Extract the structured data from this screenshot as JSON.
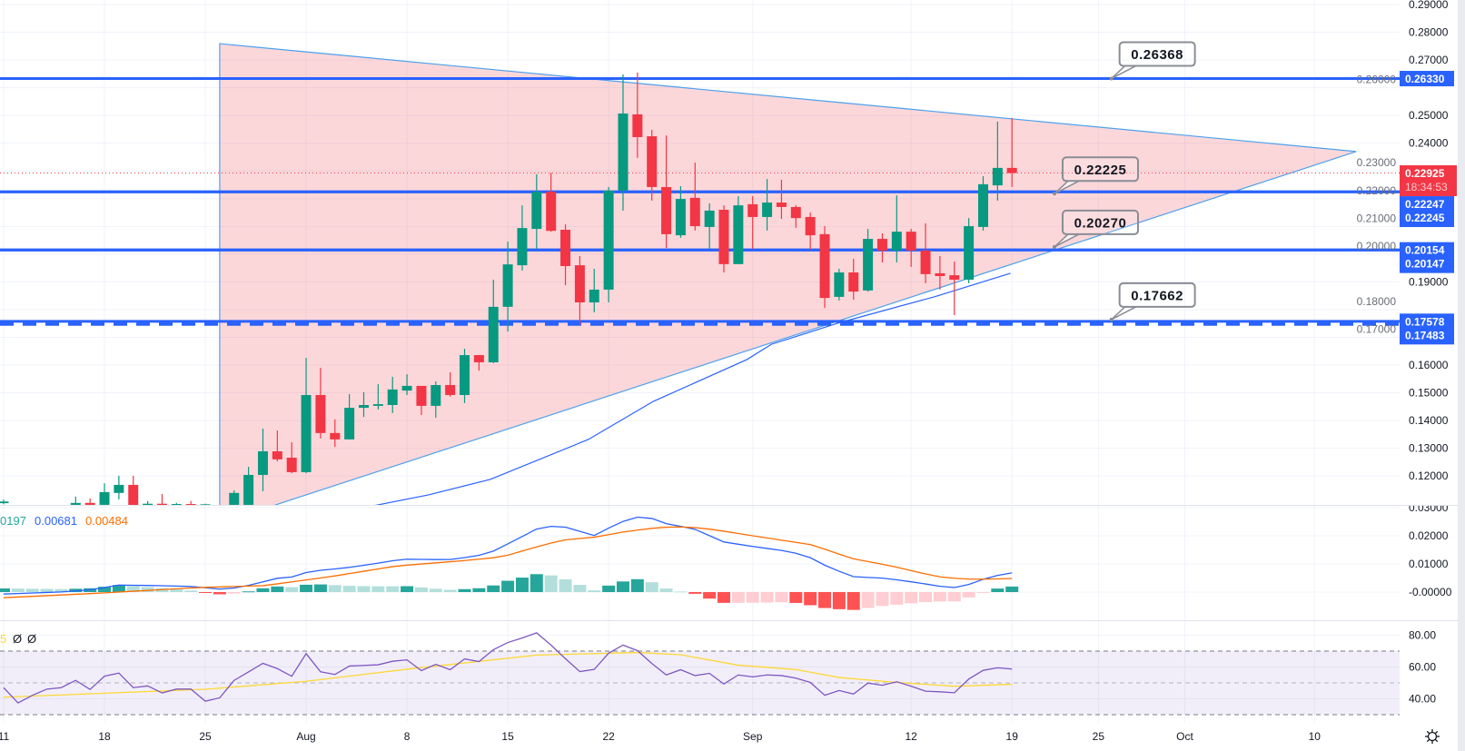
{
  "chart_data": {
    "type": "candlestick",
    "title": "",
    "xlabel": "",
    "ylabel": "",
    "time_axis": {
      "origin": "Jul 11",
      "labels": [
        {
          "text": "11",
          "day": 0
        },
        {
          "text": "18",
          "day": 7
        },
        {
          "text": "25",
          "day": 14
        },
        {
          "text": "Aug",
          "day": 21
        },
        {
          "text": "8",
          "day": 28
        },
        {
          "text": "15",
          "day": 35
        },
        {
          "text": "22",
          "day": 42
        },
        {
          "text": "Sep",
          "day": 52
        },
        {
          "text": "12",
          "day": 63
        },
        {
          "text": "19",
          "day": 70
        },
        {
          "text": "25",
          "day": 76
        },
        {
          "text": "Oct",
          "day": 82
        },
        {
          "text": "10",
          "day": 91
        }
      ]
    },
    "price_axis": {
      "range": [
        0.1085,
        0.2915
      ],
      "ticks": [
        {
          "text": "0.29000",
          "value": 0.29
        },
        {
          "text": "0.28000",
          "value": 0.28
        },
        {
          "text": "0.27000",
          "value": 0.27
        },
        {
          "text": "0.26000",
          "value": 0.26
        },
        {
          "text": "0.25000",
          "value": 0.25
        },
        {
          "text": "0.24000",
          "value": 0.24
        },
        {
          "text": "0.23000",
          "value": 0.23
        },
        {
          "text": "0.22000",
          "value": 0.22
        },
        {
          "text": "0.21000",
          "value": 0.21
        },
        {
          "text": "0.20000",
          "value": 0.2
        },
        {
          "text": "0.19000",
          "value": 0.19
        },
        {
          "text": "0.18000",
          "value": 0.18
        },
        {
          "text": "0.17000",
          "value": 0.17
        },
        {
          "text": "0.16000",
          "value": 0.16
        },
        {
          "text": "0.15000",
          "value": 0.15
        },
        {
          "text": "0.14000",
          "value": 0.14
        },
        {
          "text": "0.13000",
          "value": 0.13
        },
        {
          "text": "0.12000",
          "value": 0.12
        }
      ]
    },
    "candle_format": [
      "day",
      "open",
      "high",
      "low",
      "close"
    ],
    "candles": [
      [
        0,
        0.1102,
        0.1115,
        0.1098,
        0.1108
      ],
      [
        5,
        0.1096,
        0.1126,
        0.109,
        0.1103
      ],
      [
        6,
        0.1103,
        0.1119,
        0.109,
        0.1096
      ],
      [
        7,
        0.1096,
        0.1174,
        0.1083,
        0.1142
      ],
      [
        8,
        0.1139,
        0.1201,
        0.1116,
        0.1168
      ],
      [
        9,
        0.1168,
        0.1201,
        0.1066,
        0.1083
      ],
      [
        10,
        0.1096,
        0.111,
        0.109,
        0.11
      ],
      [
        11,
        0.11,
        0.1135,
        0.109,
        0.1096
      ],
      [
        12,
        0.1096,
        0.1103,
        0.1093,
        0.1099
      ],
      [
        13,
        0.1099,
        0.111,
        0.1085,
        0.1096
      ],
      [
        14,
        0.1096,
        0.11,
        0.1092,
        0.1098
      ],
      [
        16,
        0.1096,
        0.1148,
        0.109,
        0.1139
      ],
      [
        17,
        0.1096,
        0.1233,
        0.1085,
        0.1204
      ],
      [
        18,
        0.1204,
        0.1371,
        0.1145,
        0.1289
      ],
      [
        19,
        0.1289,
        0.1364,
        0.1253,
        0.126
      ],
      [
        20,
        0.1266,
        0.1322,
        0.121,
        0.1214
      ],
      [
        21,
        0.1214,
        0.1626,
        0.121,
        0.1492
      ],
      [
        22,
        0.1492,
        0.159,
        0.1335,
        0.1355
      ],
      [
        23,
        0.1355,
        0.1404,
        0.1305,
        0.1332
      ],
      [
        24,
        0.1332,
        0.1495,
        0.1332,
        0.1446
      ],
      [
        25,
        0.1446,
        0.1502,
        0.1413,
        0.1456
      ],
      [
        26,
        0.1453,
        0.1531,
        0.144,
        0.1459
      ],
      [
        27,
        0.1456,
        0.1558,
        0.1427,
        0.1512
      ],
      [
        28,
        0.1508,
        0.1567,
        0.1492,
        0.1525
      ],
      [
        29,
        0.1525,
        0.1525,
        0.142,
        0.1453
      ],
      [
        30,
        0.1453,
        0.1541,
        0.141,
        0.1528
      ],
      [
        31,
        0.1528,
        0.1574,
        0.1486,
        0.1492
      ],
      [
        32,
        0.1492,
        0.1659,
        0.1463,
        0.1636
      ],
      [
        33,
        0.1636,
        0.1636,
        0.158,
        0.161
      ],
      [
        34,
        0.161,
        0.1908,
        0.1607,
        0.181
      ],
      [
        35,
        0.181,
        0.2045,
        0.1721,
        0.1963
      ],
      [
        36,
        0.196,
        0.2176,
        0.1941,
        0.2094
      ],
      [
        37,
        0.2091,
        0.2288,
        0.2016,
        0.2225
      ],
      [
        38,
        0.2225,
        0.2294,
        0.2081,
        0.2084
      ],
      [
        39,
        0.2088,
        0.2107,
        0.1888,
        0.1957
      ],
      [
        40,
        0.196,
        0.1993,
        0.1744,
        0.1826
      ],
      [
        41,
        0.1826,
        0.1947,
        0.179,
        0.1872
      ],
      [
        42,
        0.1872,
        0.2242,
        0.1826,
        0.2229
      ],
      [
        43,
        0.2229,
        0.2648,
        0.2157,
        0.2507
      ],
      [
        44,
        0.2504,
        0.2655,
        0.2347,
        0.2422
      ],
      [
        45,
        0.2425,
        0.2448,
        0.2193,
        0.2242
      ],
      [
        46,
        0.2242,
        0.2428,
        0.2022,
        0.2072
      ],
      [
        47,
        0.2068,
        0.2245,
        0.2059,
        0.2199
      ],
      [
        48,
        0.2203,
        0.233,
        0.2085,
        0.2101
      ],
      [
        49,
        0.2098,
        0.2183,
        0.2019,
        0.2157
      ],
      [
        50,
        0.216,
        0.2176,
        0.1934,
        0.1964
      ],
      [
        51,
        0.1964,
        0.2209,
        0.1964,
        0.2176
      ],
      [
        52,
        0.218,
        0.2209,
        0.2019,
        0.2134
      ],
      [
        53,
        0.2134,
        0.2271,
        0.2085,
        0.2186
      ],
      [
        54,
        0.2186,
        0.2268,
        0.2127,
        0.217
      ],
      [
        55,
        0.217,
        0.2176,
        0.2095,
        0.213
      ],
      [
        56,
        0.2134,
        0.215,
        0.2016,
        0.2068
      ],
      [
        57,
        0.2072,
        0.2101,
        0.1806,
        0.1842
      ],
      [
        58,
        0.1846,
        0.1947,
        0.1833,
        0.1934
      ],
      [
        59,
        0.1934,
        0.1983,
        0.1836,
        0.1865
      ],
      [
        60,
        0.1869,
        0.2091,
        0.1865,
        0.2055
      ],
      [
        61,
        0.2055,
        0.2075,
        0.197,
        0.2013
      ],
      [
        62,
        0.2013,
        0.2212,
        0.197,
        0.2081
      ],
      [
        63,
        0.2081,
        0.2091,
        0.1954,
        0.2013
      ],
      [
        64,
        0.2013,
        0.2111,
        0.1895,
        0.1928
      ],
      [
        65,
        0.1931,
        0.1993,
        0.1872,
        0.1921
      ],
      [
        66,
        0.1924,
        0.1973,
        0.178,
        0.1908
      ],
      [
        67,
        0.1908,
        0.213,
        0.1895,
        0.2101
      ],
      [
        68,
        0.2098,
        0.2281,
        0.2085,
        0.2252
      ],
      [
        69,
        0.2248,
        0.2478,
        0.2193,
        0.2311
      ],
      [
        70,
        0.2311,
        0.2491,
        0.2242,
        0.22925
      ]
    ],
    "levels": [
      {
        "price": 0.2633,
        "style": "solid"
      },
      {
        "price": 0.22247,
        "style": "solid"
      },
      {
        "price": 0.22245,
        "style": "solid"
      },
      {
        "price": 0.20154,
        "style": "solid"
      },
      {
        "price": 0.20147,
        "style": "solid"
      },
      {
        "price": 0.17578,
        "style": "solid"
      },
      {
        "price": 0.17483,
        "style": "dashed"
      }
    ],
    "callouts": [
      {
        "text": "0.26368",
        "day": 76.9,
        "price": 0.2633
      },
      {
        "text": "0.22225",
        "day": 72.95,
        "price": 0.2218
      },
      {
        "text": "0.20270",
        "day": 72.95,
        "price": 0.2026
      },
      {
        "text": "0.17662",
        "day": 76.9,
        "price": 0.1764
      }
    ],
    "triangle": [
      [
        15,
        0.2759
      ],
      [
        93.9,
        0.237
      ],
      [
        15,
        0.103
      ]
    ],
    "moving_average": [
      [
        25.7,
        0.1093
      ],
      [
        29.5,
        0.1132
      ],
      [
        33.8,
        0.1188
      ],
      [
        40.6,
        0.1332
      ],
      [
        45.1,
        0.1469
      ],
      [
        51.6,
        0.162
      ],
      [
        53.3,
        0.1675
      ],
      [
        58.1,
        0.1754
      ],
      [
        64.6,
        0.1846
      ],
      [
        68.9,
        0.1915
      ],
      [
        69.9,
        0.1931
      ]
    ],
    "current_price": 0.22925,
    "axis_badges": [
      {
        "price": 0.2633,
        "labels": [
          "0.26330"
        ],
        "color": "#2962ff"
      },
      {
        "price": 0.22925,
        "labels": [
          "0.22925",
          "18:34:53"
        ],
        "color": "#f23645"
      },
      {
        "price": 0.22247,
        "labels": [
          "0.22247",
          "0.22245"
        ],
        "color": "#2962ff"
      },
      {
        "price": 0.20154,
        "labels": [
          "0.20154",
          "0.20147"
        ],
        "color": "#2962ff"
      },
      {
        "price": 0.17578,
        "labels": [
          "0.17578",
          "0.17483"
        ],
        "color": "#2962ff"
      }
    ],
    "macd": {
      "legend": [
        {
          "text": "0197",
          "color": "#26a69a"
        },
        {
          "text": "0.00681",
          "color": "#2962ff"
        },
        {
          "text": "0.00484",
          "color": "#ff6d00"
        }
      ],
      "ticks": [
        {
          "text": "0.03000",
          "value": 0.03
        },
        {
          "text": "0.02000",
          "value": 0.02
        },
        {
          "text": "0.01000",
          "value": 0.01
        },
        {
          "text": "-0.00000",
          "value": 0
        }
      ],
      "macd_line": [
        [
          0,
          -0.0007
        ],
        [
          4.3,
          0.0001
        ],
        [
          6.2,
          0.0009
        ],
        [
          8,
          0.0025
        ],
        [
          10.75,
          0.0023
        ],
        [
          13,
          0.002
        ],
        [
          15.3,
          0.0009
        ],
        [
          16.7,
          0.002
        ],
        [
          19,
          0.0049
        ],
        [
          19.9,
          0.0052
        ],
        [
          21.3,
          0.0074
        ],
        [
          23.6,
          0.0085
        ],
        [
          25.4,
          0.0098
        ],
        [
          27.7,
          0.0117
        ],
        [
          30.9,
          0.0115
        ],
        [
          32.8,
          0.0128
        ],
        [
          33.9,
          0.0143
        ],
        [
          35.5,
          0.0184
        ],
        [
          37.3,
          0.0232
        ],
        [
          38.7,
          0.0235
        ],
        [
          41,
          0.0201
        ],
        [
          42.8,
          0.0248
        ],
        [
          44,
          0.0266
        ],
        [
          45.1,
          0.0261
        ],
        [
          46,
          0.0243
        ],
        [
          47.9,
          0.0225
        ],
        [
          50,
          0.0178
        ],
        [
          52,
          0.0162
        ],
        [
          54.3,
          0.0146
        ],
        [
          55.7,
          0.013
        ],
        [
          57.1,
          0.0093
        ],
        [
          58.9,
          0.0055
        ],
        [
          61.2,
          0.0049
        ],
        [
          63.5,
          0.0033
        ],
        [
          65.8,
          0.0014
        ],
        [
          67.1,
          0.0028
        ],
        [
          68.5,
          0.0055
        ],
        [
          70,
          0.00681
        ]
      ],
      "signal_line": [
        [
          0,
          -0.002
        ],
        [
          6.6,
          -0.0004
        ],
        [
          13.5,
          0.0016
        ],
        [
          18.1,
          0.0023
        ],
        [
          22.7,
          0.0055
        ],
        [
          27.3,
          0.0093
        ],
        [
          31.8,
          0.0111
        ],
        [
          34.6,
          0.0125
        ],
        [
          36.4,
          0.0152
        ],
        [
          38.7,
          0.0184
        ],
        [
          41,
          0.0195
        ],
        [
          43.3,
          0.0216
        ],
        [
          45.6,
          0.023
        ],
        [
          47.4,
          0.0232
        ],
        [
          49.3,
          0.0222
        ],
        [
          52,
          0.02
        ],
        [
          56.1,
          0.0168
        ],
        [
          58.9,
          0.0119
        ],
        [
          61.6,
          0.0093
        ],
        [
          64.8,
          0.0055
        ],
        [
          66.7,
          0.0046
        ],
        [
          68.5,
          0.0046
        ],
        [
          70,
          0.00484
        ]
      ]
    },
    "rsi": {
      "legend": [
        {
          "text": "5",
          "color": "#fdd835"
        },
        {
          "text": "Ø",
          "color": "#131722"
        },
        {
          "text": "Ø",
          "color": "#131722"
        }
      ],
      "ticks": [
        {
          "text": "80.00",
          "value": 80
        },
        {
          "text": "60.00",
          "value": 60
        },
        {
          "text": "40.00",
          "value": 40
        }
      ],
      "bands": {
        "upper": 70,
        "middle": 50,
        "lower": 30
      },
      "values": [
        47.0,
        37.4,
        42.2,
        46.1,
        47.0,
        51.6,
        45.9,
        54.2,
        56.2,
        47.0,
        48.1,
        43.7,
        46.1,
        46.1,
        38.5,
        40.6,
        51.6,
        56.9,
        62.3,
        59.0,
        54.2,
        68.4,
        57.0,
        55.3,
        60.6,
        61.0,
        61.4,
        63.6,
        64.5,
        57.7,
        61.7,
        58.3,
        65.1,
        63.4,
        70.9,
        75.4,
        78.3,
        81.5,
        73.8,
        65.2,
        57.1,
        58.5,
        68.7,
        73.8,
        70.3,
        62.2,
        55.0,
        58.3,
        54.6,
        56.0,
        49.3,
        55.0,
        53.8,
        55.0,
        54.6,
        53.0,
        50.3,
        42.2,
        45.2,
        43.0,
        49.9,
        48.5,
        50.7,
        47.9,
        44.8,
        44.4,
        43.8,
        52.4,
        57.9,
        59.5,
        58.7
      ],
      "ma": [
        [
          0,
          41
        ],
        [
          14,
          46
        ],
        [
          21,
          51
        ],
        [
          28,
          58.6
        ],
        [
          37,
          67.5
        ],
        [
          44,
          69.1
        ],
        [
          47,
          67.7
        ],
        [
          51,
          61.1
        ],
        [
          55,
          58.4
        ],
        [
          58,
          53.4
        ],
        [
          62,
          50.3
        ],
        [
          66,
          47.9
        ],
        [
          70,
          49.1
        ]
      ]
    }
  },
  "colors": {
    "up": "#089981",
    "down": "#f23645",
    "level": "#2962ff",
    "trendline": "#4ca1ef",
    "triangle_fill": "rgba(242,54,69,0.2)",
    "macd": "#2962ff",
    "signal": "#ff6d00",
    "hist_up_strong": "#26a69a",
    "hist_up_weak": "#b2dfdb",
    "hist_down_strong": "#ff5252",
    "hist_down_weak": "#ffcdd2",
    "rsi": "#7e57c2",
    "rsi_ma": "#fdd835"
  }
}
